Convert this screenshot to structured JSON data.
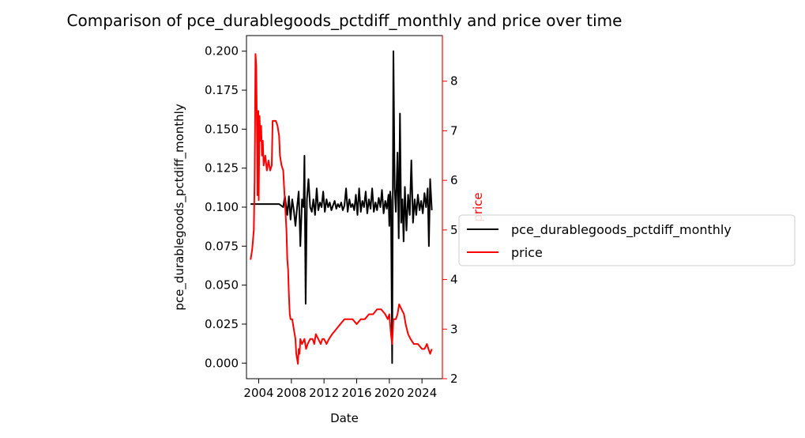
{
  "chart_data": {
    "type": "line",
    "title": "Comparison of pce_durablegoods_pctdiff_monthly and price over time",
    "xlabel": "Date",
    "ylabel_left": "pce_durablegoods_pctdiff_monthly",
    "ylabel_right": "price",
    "xlim": [
      2002.5,
      2026.5
    ],
    "ylim_left": [
      -0.01,
      0.21
    ],
    "ylim_right": [
      2.0,
      8.92
    ],
    "x_ticks": [
      "2004",
      "2008",
      "2012",
      "2016",
      "2020",
      "2024"
    ],
    "y_ticks_left": [
      "0.000",
      "0.025",
      "0.050",
      "0.075",
      "0.100",
      "0.125",
      "0.150",
      "0.175",
      "0.200"
    ],
    "y_ticks_right": [
      "2",
      "3",
      "4",
      "5",
      "6",
      "7",
      "8"
    ],
    "legend_placement": "center-right outside",
    "grid": false,
    "colors": {
      "left_series": "#000000",
      "right_series": "#ff0000",
      "right_axis": "#ff0000"
    },
    "series": [
      {
        "name": "pce_durablegoods_pctdiff_monthly",
        "axis": "left",
        "color": "#000000",
        "points": [
          [
            2003.0,
            0.102
          ],
          [
            2006.5,
            0.102
          ],
          [
            2007.0,
            0.1
          ],
          [
            2007.2,
            0.107
          ],
          [
            2007.5,
            0.095
          ],
          [
            2007.7,
            0.107
          ],
          [
            2007.9,
            0.092
          ],
          [
            2008.1,
            0.105
          ],
          [
            2008.3,
            0.098
          ],
          [
            2008.5,
            0.088
          ],
          [
            2008.7,
            0.1
          ],
          [
            2008.9,
            0.11
          ],
          [
            2009.0,
            0.093
          ],
          [
            2009.1,
            0.075
          ],
          [
            2009.3,
            0.105
          ],
          [
            2009.5,
            0.1
          ],
          [
            2009.6,
            0.133
          ],
          [
            2009.75,
            0.038
          ],
          [
            2009.9,
            0.105
          ],
          [
            2010.1,
            0.118
          ],
          [
            2010.3,
            0.1
          ],
          [
            2010.5,
            0.097
          ],
          [
            2010.7,
            0.105
          ],
          [
            2010.9,
            0.095
          ],
          [
            2011.1,
            0.112
          ],
          [
            2011.3,
            0.098
          ],
          [
            2011.5,
            0.103
          ],
          [
            2011.7,
            0.1
          ],
          [
            2011.9,
            0.11
          ],
          [
            2012.1,
            0.097
          ],
          [
            2012.3,
            0.105
          ],
          [
            2012.5,
            0.1
          ],
          [
            2012.7,
            0.103
          ],
          [
            2012.9,
            0.098
          ],
          [
            2013.1,
            0.101
          ],
          [
            2013.3,
            0.104
          ],
          [
            2013.5,
            0.099
          ],
          [
            2013.7,
            0.102
          ],
          [
            2013.9,
            0.1
          ],
          [
            2014.1,
            0.103
          ],
          [
            2014.3,
            0.098
          ],
          [
            2014.5,
            0.101
          ],
          [
            2014.7,
            0.112
          ],
          [
            2014.9,
            0.097
          ],
          [
            2015.1,
            0.105
          ],
          [
            2015.3,
            0.1
          ],
          [
            2015.5,
            0.102
          ],
          [
            2015.7,
            0.098
          ],
          [
            2015.9,
            0.108
          ],
          [
            2016.1,
            0.095
          ],
          [
            2016.3,
            0.112
          ],
          [
            2016.5,
            0.097
          ],
          [
            2016.7,
            0.104
          ],
          [
            2016.9,
            0.1
          ],
          [
            2017.1,
            0.11
          ],
          [
            2017.3,
            0.096
          ],
          [
            2017.5,
            0.105
          ],
          [
            2017.7,
            0.099
          ],
          [
            2017.9,
            0.112
          ],
          [
            2018.1,
            0.097
          ],
          [
            2018.3,
            0.103
          ],
          [
            2018.5,
            0.098
          ],
          [
            2018.7,
            0.106
          ],
          [
            2018.9,
            0.1
          ],
          [
            2019.1,
            0.111
          ],
          [
            2019.3,
            0.096
          ],
          [
            2019.5,
            0.104
          ],
          [
            2019.7,
            0.099
          ],
          [
            2019.9,
            0.108
          ],
          [
            2020.0,
            0.088
          ],
          [
            2020.1,
            0.11
          ],
          [
            2020.2,
            0.104
          ],
          [
            2020.35,
            0.0
          ],
          [
            2020.5,
            0.2
          ],
          [
            2020.65,
            0.112
          ],
          [
            2020.8,
            0.097
          ],
          [
            2021.0,
            0.135
          ],
          [
            2021.15,
            0.08
          ],
          [
            2021.3,
            0.16
          ],
          [
            2021.45,
            0.09
          ],
          [
            2021.6,
            0.105
          ],
          [
            2021.75,
            0.078
          ],
          [
            2021.9,
            0.113
          ],
          [
            2022.1,
            0.085
          ],
          [
            2022.3,
            0.108
          ],
          [
            2022.5,
            0.095
          ],
          [
            2022.7,
            0.13
          ],
          [
            2022.9,
            0.09
          ],
          [
            2023.1,
            0.105
          ],
          [
            2023.3,
            0.095
          ],
          [
            2023.5,
            0.108
          ],
          [
            2023.7,
            0.098
          ],
          [
            2023.9,
            0.104
          ],
          [
            2024.1,
            0.096
          ],
          [
            2024.3,
            0.109
          ],
          [
            2024.5,
            0.1
          ],
          [
            2024.7,
            0.112
          ],
          [
            2024.85,
            0.075
          ],
          [
            2025.0,
            0.118
          ],
          [
            2025.2,
            0.098
          ]
        ]
      },
      {
        "name": "price",
        "axis": "right",
        "color": "#ff0000",
        "points": [
          [
            2003.0,
            4.4
          ],
          [
            2003.2,
            4.6
          ],
          [
            2003.4,
            5.0
          ],
          [
            2003.5,
            6.0
          ],
          [
            2003.55,
            7.0
          ],
          [
            2003.6,
            8.55
          ],
          [
            2003.7,
            8.3
          ],
          [
            2003.8,
            6.8
          ],
          [
            2003.85,
            5.7
          ],
          [
            2003.9,
            6.3
          ],
          [
            2003.95,
            7.4
          ],
          [
            2004.0,
            5.6
          ],
          [
            2004.1,
            7.3
          ],
          [
            2004.2,
            6.8
          ],
          [
            2004.3,
            7.1
          ],
          [
            2004.4,
            6.5
          ],
          [
            2004.5,
            6.8
          ],
          [
            2004.6,
            6.3
          ],
          [
            2004.8,
            6.5
          ],
          [
            2005.0,
            6.2
          ],
          [
            2005.2,
            6.4
          ],
          [
            2005.4,
            6.2
          ],
          [
            2005.6,
            6.3
          ],
          [
            2005.7,
            7.2
          ],
          [
            2005.9,
            7.2
          ],
          [
            2006.1,
            7.2
          ],
          [
            2006.3,
            7.1
          ],
          [
            2006.5,
            6.9
          ],
          [
            2006.6,
            6.5
          ],
          [
            2006.8,
            6.3
          ],
          [
            2007.0,
            6.2
          ],
          [
            2007.1,
            5.9
          ],
          [
            2007.2,
            5.6
          ],
          [
            2007.3,
            5.3
          ],
          [
            2007.4,
            5.0
          ],
          [
            2007.5,
            4.4
          ],
          [
            2007.6,
            4.2
          ],
          [
            2007.7,
            3.7
          ],
          [
            2007.8,
            3.3
          ],
          [
            2007.9,
            3.2
          ],
          [
            2008.1,
            3.2
          ],
          [
            2008.3,
            3.0
          ],
          [
            2008.5,
            2.8
          ],
          [
            2008.6,
            2.5
          ],
          [
            2008.7,
            2.4
          ],
          [
            2008.8,
            2.3
          ],
          [
            2008.9,
            2.6
          ],
          [
            2009.0,
            2.5
          ],
          [
            2009.1,
            2.8
          ],
          [
            2009.3,
            2.7
          ],
          [
            2009.6,
            2.8
          ],
          [
            2009.8,
            2.6
          ],
          [
            2010.0,
            2.7
          ],
          [
            2010.3,
            2.8
          ],
          [
            2010.6,
            2.8
          ],
          [
            2010.8,
            2.7
          ],
          [
            2011.0,
            2.9
          ],
          [
            2011.3,
            2.8
          ],
          [
            2011.6,
            2.7
          ],
          [
            2011.8,
            2.8
          ],
          [
            2012.0,
            2.8
          ],
          [
            2012.3,
            2.7
          ],
          [
            2012.6,
            2.8
          ],
          [
            2013.0,
            2.9
          ],
          [
            2013.5,
            3.0
          ],
          [
            2014.0,
            3.1
          ],
          [
            2014.5,
            3.2
          ],
          [
            2015.0,
            3.2
          ],
          [
            2015.5,
            3.2
          ],
          [
            2016.0,
            3.1
          ],
          [
            2016.5,
            3.2
          ],
          [
            2017.0,
            3.2
          ],
          [
            2017.5,
            3.3
          ],
          [
            2018.0,
            3.3
          ],
          [
            2018.5,
            3.4
          ],
          [
            2019.0,
            3.4
          ],
          [
            2019.5,
            3.3
          ],
          [
            2019.8,
            3.2
          ],
          [
            2020.0,
            3.3
          ],
          [
            2020.2,
            2.9
          ],
          [
            2020.35,
            2.7
          ],
          [
            2020.5,
            3.2
          ],
          [
            2020.8,
            3.2
          ],
          [
            2021.0,
            3.3
          ],
          [
            2021.2,
            3.5
          ],
          [
            2021.5,
            3.4
          ],
          [
            2021.8,
            3.3
          ],
          [
            2022.0,
            3.1
          ],
          [
            2022.3,
            2.9
          ],
          [
            2022.6,
            2.8
          ],
          [
            2023.0,
            2.7
          ],
          [
            2023.5,
            2.7
          ],
          [
            2024.0,
            2.6
          ],
          [
            2024.3,
            2.6
          ],
          [
            2024.6,
            2.7
          ],
          [
            2024.8,
            2.6
          ],
          [
            2025.0,
            2.5
          ],
          [
            2025.2,
            2.6
          ]
        ]
      }
    ]
  }
}
